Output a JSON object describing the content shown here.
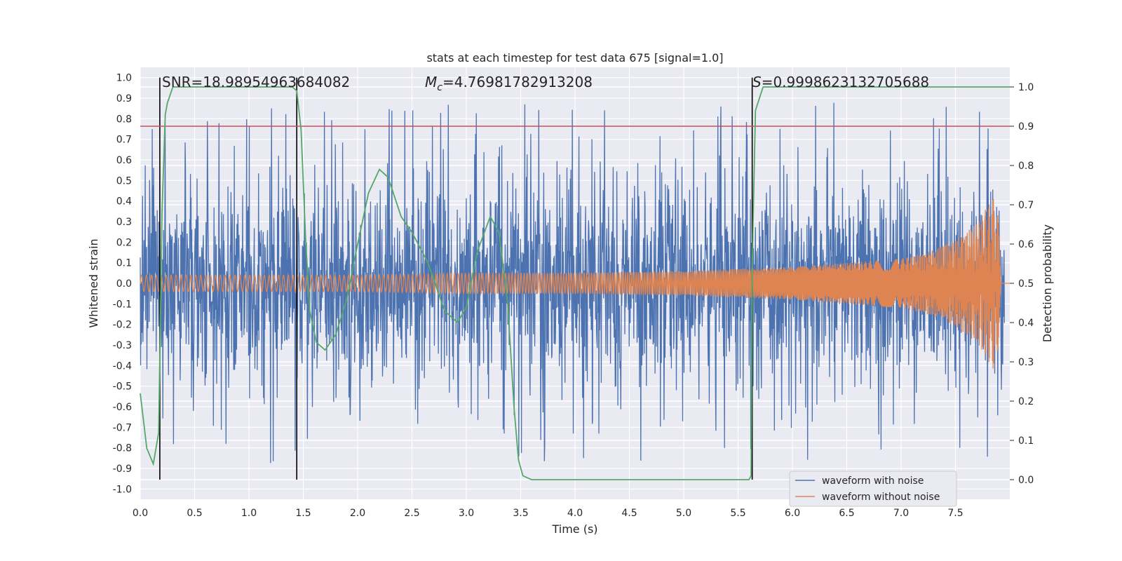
{
  "chart_data": {
    "type": "line",
    "title": "stats at each timestep for test data 675 [signal=1.0]",
    "xlabel": "Time (s)",
    "ylabel_left": "Whitened strain",
    "ylabel_right": "Detection probability",
    "xlim": [
      0.0,
      8.0
    ],
    "ylim_left": [
      -1.05,
      1.05
    ],
    "ylim_right": [
      -0.05,
      1.05
    ],
    "xticks": [
      "0.0",
      "0.5",
      "1.0",
      "1.5",
      "2.0",
      "2.5",
      "3.0",
      "3.5",
      "4.0",
      "4.5",
      "5.0",
      "5.5",
      "6.0",
      "6.5",
      "7.0",
      "7.5"
    ],
    "yticks_left": [
      "-1.0",
      "-0.9",
      "-0.8",
      "-0.7",
      "-0.6",
      "-0.5",
      "-0.4",
      "-0.3",
      "-0.2",
      "-0.1",
      "0.0",
      "0.1",
      "0.2",
      "0.3",
      "0.4",
      "0.5",
      "0.6",
      "0.7",
      "0.8",
      "0.9",
      "1.0"
    ],
    "yticks_right": [
      "0.0",
      "0.1",
      "0.2",
      "0.3",
      "0.4",
      "0.5",
      "0.6",
      "0.7",
      "0.8",
      "0.9",
      "1.0"
    ],
    "annotations": {
      "snr_label": "SNR=18.98954963684082",
      "mc_symbol": "M",
      "mc_sub": "c",
      "mc_value": "=4.76981782913208",
      "s_symbol": "S",
      "s_value": "=0.9998623132705688"
    },
    "threshold": 0.9,
    "vertical_markers": [
      0.18,
      1.44,
      5.63
    ],
    "grid": true,
    "legend_position": "lower-right",
    "series": [
      {
        "name": "waveform with noise",
        "color": "#4c72b0",
        "axis": "left",
        "description_amplitude": 0.5
      },
      {
        "name": "waveform without noise",
        "color": "#dd8452",
        "axis": "left",
        "envelope": [
          [
            0.0,
            0.04
          ],
          [
            1.0,
            0.04
          ],
          [
            2.0,
            0.04
          ],
          [
            3.0,
            0.05
          ],
          [
            4.0,
            0.05
          ],
          [
            5.0,
            0.06
          ],
          [
            5.5,
            0.07
          ],
          [
            6.0,
            0.08
          ],
          [
            6.5,
            0.1
          ],
          [
            7.0,
            0.12
          ],
          [
            7.3,
            0.16
          ],
          [
            7.5,
            0.21
          ],
          [
            7.7,
            0.29
          ],
          [
            7.8,
            0.38
          ],
          [
            7.88,
            0.44
          ],
          [
            7.92,
            0.01
          ],
          [
            8.0,
            0.0
          ]
        ]
      },
      {
        "name": "",
        "color": "#55a868",
        "axis": "right",
        "x": [
          0.0,
          0.06,
          0.12,
          0.17,
          0.2,
          0.23,
          0.25,
          0.3,
          0.33,
          0.6,
          1.0,
          1.4,
          1.44,
          1.48,
          1.52,
          1.56,
          1.62,
          1.7,
          1.8,
          1.9,
          2.0,
          2.1,
          2.2,
          2.28,
          2.34,
          2.4,
          2.5,
          2.65,
          2.8,
          2.92,
          3.0,
          3.1,
          3.22,
          3.3,
          3.38,
          3.44,
          3.48,
          3.52,
          3.6,
          4.0,
          5.0,
          5.55,
          5.6,
          5.62,
          5.63,
          5.66,
          5.73,
          6.0,
          7.0,
          8.0
        ],
        "y": [
          0.22,
          0.08,
          0.04,
          0.12,
          0.68,
          0.93,
          0.96,
          1.0,
          1.0,
          1.0,
          1.0,
          1.0,
          0.99,
          0.89,
          0.62,
          0.43,
          0.35,
          0.33,
          0.37,
          0.46,
          0.6,
          0.73,
          0.79,
          0.77,
          0.72,
          0.67,
          0.63,
          0.55,
          0.43,
          0.4,
          0.44,
          0.58,
          0.67,
          0.63,
          0.45,
          0.18,
          0.05,
          0.01,
          0.0,
          0.0,
          0.0,
          0.0,
          0.0,
          0.01,
          0.55,
          0.94,
          1.0,
          1.0,
          1.0,
          1.0
        ]
      }
    ]
  }
}
